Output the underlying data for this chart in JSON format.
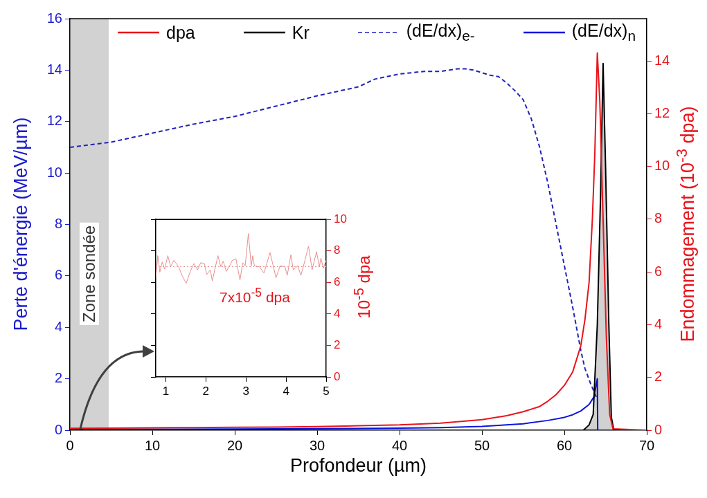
{
  "chart_data": [
    {
      "type": "line",
      "xlabel": "Profondeur (µm)",
      "ylabel": "Perte d'énergie (MeV/µm)",
      "y2label": "Endommagement (10$^{-3}$ dpa)",
      "series": [
        {
          "name": "dpa",
          "color": "#e8141b",
          "axis": "y2",
          "x": [
            0,
            5,
            10,
            15,
            20,
            25,
            30,
            35,
            40,
            45,
            50,
            53,
            55,
            57,
            58,
            59,
            60,
            61,
            62,
            62.5,
            63,
            63.4,
            63.7,
            64.0,
            64.3,
            64.7,
            65.1,
            65.5,
            65.9,
            70
          ],
          "values": [
            0.07,
            0.08,
            0.09,
            0.1,
            0.11,
            0.12,
            0.14,
            0.17,
            0.2,
            0.27,
            0.4,
            0.55,
            0.7,
            0.9,
            1.1,
            1.35,
            1.7,
            2.2,
            3.2,
            4.2,
            5.6,
            8.0,
            10.5,
            14.3,
            12.5,
            8.0,
            3.5,
            0.6,
            0.05,
            0
          ]
        },
        {
          "name": "Kr",
          "type": "area",
          "color": "#000000",
          "axis": "y2",
          "x": [
            0,
            62.3,
            63.0,
            63.5,
            64.0,
            64.4,
            64.7,
            65.0,
            65.4,
            65.7,
            66.0,
            70
          ],
          "values": [
            0,
            0,
            0.2,
            0.6,
            4,
            9,
            13.9,
            10,
            4,
            0.5,
            0,
            0
          ]
        },
        {
          "name": "(dE/dx)$_{e-}$",
          "color": "#2222bb",
          "line_style": "dashed",
          "x": [
            0,
            5,
            10,
            15,
            20,
            25,
            30,
            35,
            37,
            40,
            43,
            45,
            47,
            48,
            49,
            50,
            51,
            52,
            53,
            54,
            55,
            56,
            57,
            58,
            59,
            60,
            61,
            62,
            62.5,
            63.2,
            64.0
          ],
          "values": [
            11.0,
            11.2,
            11.55,
            11.9,
            12.2,
            12.6,
            13.0,
            13.35,
            13.65,
            13.85,
            13.95,
            13.95,
            14.05,
            14.05,
            14.0,
            13.9,
            13.8,
            13.75,
            13.5,
            13.2,
            12.85,
            12.1,
            11.0,
            9.6,
            8.0,
            6.4,
            4.8,
            3.1,
            2.4,
            1.8,
            1.2
          ]
        },
        {
          "name": "(dE/dx)$_{n}$",
          "color": "#0a14e0",
          "x": [
            0,
            10,
            20,
            30,
            40,
            45,
            50,
            55,
            58,
            60,
            61,
            62,
            63,
            63.6,
            64.0,
            64.05,
            70
          ],
          "values": [
            0.04,
            0.04,
            0.05,
            0.06,
            0.08,
            0.1,
            0.15,
            0.25,
            0.38,
            0.5,
            0.6,
            0.75,
            1.0,
            1.3,
            2.0,
            0,
            0
          ]
        }
      ],
      "xlim": [
        0,
        70
      ],
      "xticks": [
        0,
        10,
        20,
        30,
        40,
        50,
        60,
        70
      ],
      "ylim": [
        0,
        16
      ],
      "yticks": [
        0,
        2,
        4,
        6,
        8,
        10,
        12,
        14,
        16
      ],
      "y2lim": [
        0,
        15.6
      ],
      "y2ticks": [
        0,
        2,
        4,
        6,
        8,
        10,
        12,
        14
      ],
      "bands": [
        {
          "axis": "x",
          "from": 0,
          "to": 4.7,
          "label": "Zone sondée",
          "color": "#333333"
        }
      ],
      "legend": "top"
    },
    {
      "type": "line",
      "x": [
        0.75,
        0.8,
        0.85,
        0.91,
        0.97,
        1.05,
        1.12,
        1.2,
        1.32,
        1.41,
        1.51,
        1.61,
        1.7,
        1.79,
        1.87,
        1.96,
        2.02,
        2.11,
        2.16,
        2.3,
        2.37,
        2.43,
        2.51,
        2.6,
        2.66,
        2.75,
        2.85,
        2.92,
        2.98,
        3.06,
        3.13,
        3.17,
        3.21,
        3.33,
        3.45,
        3.6,
        3.75,
        3.85,
        3.97,
        4.03,
        4.12,
        4.18,
        4.29,
        4.37,
        4.43,
        4.56,
        4.65,
        4.76,
        4.83,
        4.87,
        4.93,
        5.0
      ],
      "series": [
        {
          "color": "#e89090",
          "axis": "y2",
          "values": [
            6.3,
            7.7,
            6.65,
            7.3,
            6.85,
            7.7,
            7.0,
            7.4,
            7.0,
            6.4,
            5.95,
            6.7,
            7.2,
            6.8,
            7.25,
            7.2,
            6.5,
            6.8,
            6.1,
            7.7,
            7.0,
            7.35,
            6.7,
            7.1,
            7.4,
            7.5,
            6.15,
            7.25,
            7.05,
            9.1,
            7.05,
            7.7,
            7.05,
            7.0,
            6.6,
            7.9,
            6.3,
            7.05,
            7.0,
            6.45,
            7.75,
            6.8,
            7.05,
            6.45,
            7.0,
            8.3,
            6.8,
            7.95,
            7.0,
            7.55,
            6.9,
            7.4
          ]
        }
      ],
      "xlim": [
        0.75,
        5
      ],
      "xticks": [
        1,
        2,
        3,
        4,
        5
      ],
      "y2lim": [
        0,
        10
      ],
      "y2ticks": [
        0,
        2,
        4,
        6,
        8,
        10
      ],
      "y2label": "10$^{-5}$ dpa",
      "ref_lines": [
        {
          "axis": "y2",
          "value": 7,
          "color": "#e89090",
          "line_style": "dotted"
        }
      ],
      "annotations": [
        "7x10$^{-5}$ dpa"
      ]
    }
  ]
}
